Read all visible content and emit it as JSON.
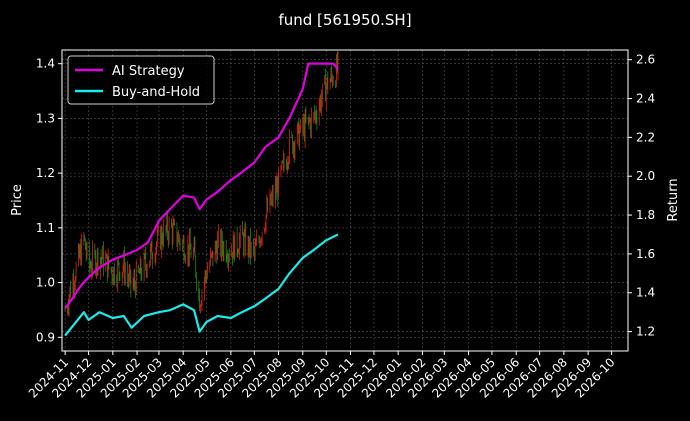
{
  "chart_data": {
    "type": "line",
    "title": "fund [561950.SH]",
    "ylabel": "Price",
    "y2label": "Return",
    "ylim": [
      0.875,
      1.425
    ],
    "y2lim": [
      1.1,
      2.65
    ],
    "xlim": [
      "2024-10-28",
      "2026-10-22"
    ],
    "yticks": [
      "0.9",
      "1.0",
      "1.1",
      "1.2",
      "1.3",
      "1.4"
    ],
    "y2ticks": [
      "1.2",
      "1.4",
      "1.6",
      "1.8",
      "2.0",
      "2.2",
      "2.4",
      "2.6"
    ],
    "xticks": [
      "2024-11",
      "2024-12",
      "2025-01",
      "2025-02",
      "2025-03",
      "2025-04",
      "2025-05",
      "2025-06",
      "2025-07",
      "2025-08",
      "2025-09",
      "2025-10",
      "2025-11",
      "2025-12",
      "2026-01",
      "2026-02",
      "2026-03",
      "2026-04",
      "2026-05",
      "2026-06",
      "2026-07",
      "2026-08",
      "2026-09",
      "2026-10"
    ],
    "grid": true,
    "legend": "top-left",
    "colors": {
      "background": "#000000",
      "ai": "#e100e1",
      "bh": "#18ecec",
      "up": "#e02010",
      "down": "#1a8a1a",
      "grid": "#555555"
    },
    "series": [
      {
        "name": "AI Strategy",
        "axis": "right",
        "points": [
          [
            "2024-11-01",
            1.32
          ],
          [
            "2024-11-10",
            1.37
          ],
          [
            "2024-11-20",
            1.43
          ],
          [
            "2024-12-01",
            1.48
          ],
          [
            "2024-12-15",
            1.53
          ],
          [
            "2025-01-01",
            1.57
          ],
          [
            "2025-01-20",
            1.6
          ],
          [
            "2025-02-01",
            1.62
          ],
          [
            "2025-02-15",
            1.66
          ],
          [
            "2025-03-01",
            1.77
          ],
          [
            "2025-03-15",
            1.83
          ],
          [
            "2025-04-01",
            1.9
          ],
          [
            "2025-04-15",
            1.89
          ],
          [
            "2025-04-22",
            1.83
          ],
          [
            "2025-05-01",
            1.88
          ],
          [
            "2025-05-15",
            1.92
          ],
          [
            "2025-06-01",
            1.98
          ],
          [
            "2025-06-15",
            2.02
          ],
          [
            "2025-07-01",
            2.07
          ],
          [
            "2025-07-15",
            2.15
          ],
          [
            "2025-08-01",
            2.2
          ],
          [
            "2025-08-15",
            2.3
          ],
          [
            "2025-09-01",
            2.45
          ],
          [
            "2025-09-08",
            2.58
          ],
          [
            "2025-10-10",
            2.58
          ],
          [
            "2025-10-16",
            2.55
          ]
        ]
      },
      {
        "name": "Buy-and-Hold",
        "axis": "right",
        "points": [
          [
            "2024-11-01",
            1.18
          ],
          [
            "2024-11-15",
            1.25
          ],
          [
            "2024-11-25",
            1.3
          ],
          [
            "2024-12-01",
            1.26
          ],
          [
            "2024-12-15",
            1.3
          ],
          [
            "2025-01-01",
            1.27
          ],
          [
            "2025-01-15",
            1.28
          ],
          [
            "2025-01-25",
            1.22
          ],
          [
            "2025-02-10",
            1.28
          ],
          [
            "2025-03-01",
            1.3
          ],
          [
            "2025-03-15",
            1.31
          ],
          [
            "2025-04-01",
            1.34
          ],
          [
            "2025-04-15",
            1.31
          ],
          [
            "2025-04-22",
            1.2
          ],
          [
            "2025-05-01",
            1.25
          ],
          [
            "2025-05-15",
            1.28
          ],
          [
            "2025-06-01",
            1.27
          ],
          [
            "2025-06-15",
            1.3
          ],
          [
            "2025-07-01",
            1.33
          ],
          [
            "2025-07-15",
            1.37
          ],
          [
            "2025-08-01",
            1.42
          ],
          [
            "2025-08-15",
            1.5
          ],
          [
            "2025-09-01",
            1.58
          ],
          [
            "2025-09-15",
            1.62
          ],
          [
            "2025-10-01",
            1.67
          ],
          [
            "2025-10-16",
            1.7
          ]
        ]
      },
      {
        "name": "Price",
        "axis": "left",
        "points": [
          [
            "2024-11-01",
            0.95
          ],
          [
            "2024-11-10",
            1.0
          ],
          [
            "2024-11-20",
            1.05
          ],
          [
            "2024-11-25",
            1.08
          ],
          [
            "2024-12-01",
            1.03
          ],
          [
            "2024-12-15",
            1.05
          ],
          [
            "2025-01-01",
            1.02
          ],
          [
            "2025-01-15",
            1.03
          ],
          [
            "2025-01-25",
            0.99
          ],
          [
            "2025-02-10",
            1.03
          ],
          [
            "2025-03-01",
            1.08
          ],
          [
            "2025-03-15",
            1.1
          ],
          [
            "2025-04-01",
            1.07
          ],
          [
            "2025-04-15",
            1.05
          ],
          [
            "2025-04-22",
            0.97
          ],
          [
            "2025-05-01",
            1.02
          ],
          [
            "2025-05-15",
            1.07
          ],
          [
            "2025-06-01",
            1.06
          ],
          [
            "2025-06-15",
            1.08
          ],
          [
            "2025-07-01",
            1.05
          ],
          [
            "2025-07-15",
            1.12
          ],
          [
            "2025-08-01",
            1.18
          ],
          [
            "2025-08-15",
            1.25
          ],
          [
            "2025-09-01",
            1.28
          ],
          [
            "2025-09-15",
            1.3
          ],
          [
            "2025-10-01",
            1.36
          ],
          [
            "2025-10-16",
            1.39
          ]
        ]
      }
    ]
  }
}
